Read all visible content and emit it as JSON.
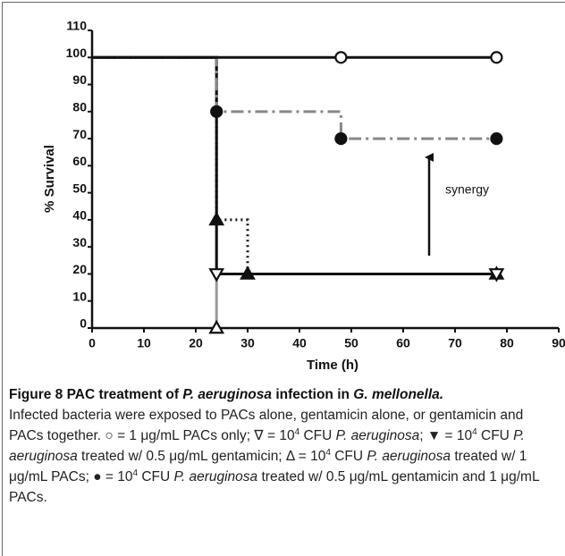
{
  "chart_data": {
    "type": "step",
    "xlabel": "Time (h)",
    "ylabel": "% Survival",
    "xlim": [
      0,
      90
    ],
    "xticks": [
      0,
      10,
      20,
      30,
      40,
      50,
      60,
      70,
      80,
      90
    ],
    "ylim": [
      0,
      110
    ],
    "yticks": [
      0,
      10,
      20,
      30,
      40,
      50,
      60,
      70,
      80,
      90,
      100,
      110
    ],
    "series": [
      {
        "color": "#999999",
        "line": "solid",
        "marker": "triangle-up-open",
        "x": [
          0,
          24
        ],
        "values": [
          100,
          0
        ]
      },
      {
        "color": "#111111",
        "line": "dotted",
        "marker": "triangle-up-filled",
        "x": [
          0,
          24,
          30,
          78
        ],
        "values": [
          100,
          40,
          20,
          20
        ]
      },
      {
        "color": "#111111",
        "line": "solid",
        "marker": "triangle-down-open",
        "x": [
          0,
          24,
          78
        ],
        "values": [
          100,
          20,
          20
        ]
      },
      {
        "color": "#888888",
        "line": "dashdot",
        "marker": "circle-filled",
        "x": [
          0,
          24,
          48,
          78
        ],
        "values": [
          100,
          80,
          70,
          70
        ]
      },
      {
        "color": "#111111",
        "line": "solid",
        "marker": "circle-open",
        "x": [
          0,
          48,
          78
        ],
        "values": [
          100,
          100,
          100
        ]
      }
    ],
    "annotation": "synergy"
  },
  "caption": {
    "title": [
      "Figure 8 PAC treatment of ",
      "P. aeruginosa",
      " infection in ",
      "G. mellonella."
    ],
    "body": [
      "Infected bacteria were exposed to PACs alone, gentamicin alone, or gentamicin and PACs together. ○ = 1 μg/mL PACs only; ∇ = 10",
      "4",
      " CFU ",
      "P. aeruginosa",
      "; ▼ = 10",
      "4",
      " CFU ",
      "P. aeruginosa",
      " treated w/ 0.5 μg/mL gentamicin; Δ = 10",
      "4",
      " CFU ",
      "P. aeruginosa",
      " treated w/ 1 μg/mL PACs; ● = 10",
      "4",
      " CFU ",
      "P. aeruginosa",
      " treated w/ 0.5 μg/mL gentamicin and 1 μg/mL PACs."
    ]
  }
}
